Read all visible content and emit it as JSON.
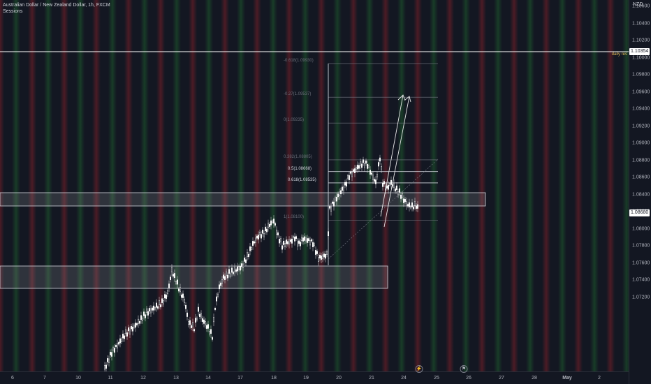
{
  "header": {
    "symbol_title": "Australian Dollar / New Zealand Dollar, 1h, FXCM",
    "indicator": "Sessions"
  },
  "price_axis": {
    "currency": "NZD",
    "ticks": [
      "1.10600",
      "1.10400",
      "1.10200",
      "1.10000",
      "1.09800",
      "1.09600",
      "1.09400",
      "1.09200",
      "1.09000",
      "1.08800",
      "1.08600",
      "1.08400",
      "1.08200",
      "1.08000",
      "1.07800",
      "1.07600",
      "1.07400",
      "1.07200"
    ],
    "daily_res_price": "1.10354",
    "current_price": "1.08680"
  },
  "time_axis": {
    "labels": [
      "6",
      "7",
      "10",
      "11",
      "12",
      "13",
      "14",
      "17",
      "18",
      "19",
      "20",
      "21",
      "24",
      "25",
      "26",
      "27",
      "28",
      "May",
      "2"
    ]
  },
  "drawings": {
    "daily_res_label": "daily res",
    "fib_levels": [
      {
        "label": "-0.618(1.09930)",
        "price": 1.0993
      },
      {
        "label": "-0.27(1.09537)",
        "price": 1.09537
      },
      {
        "label": "0(1.09235)",
        "price": 1.09235
      },
      {
        "label": "0.382(1.08805)",
        "price": 1.08805
      },
      {
        "label": "0.5(1.08668)",
        "price": 1.08668
      },
      {
        "label": "0.618(1.08535)",
        "price": 1.08535
      },
      {
        "label": "1(1.08100)",
        "price": 1.081
      }
    ],
    "zones": [
      {
        "name": "upper-supply-zone",
        "top": 1.089,
        "bottom": 1.0873
      },
      {
        "name": "lower-demand-zone",
        "top": 1.0813,
        "bottom": 1.0798
      }
    ]
  },
  "colors": {
    "background": "#131722",
    "candle": "#ffffff",
    "daily_res_line": "#ffffff",
    "daily_res_label": "#e0b85a",
    "current_price_tag": "#ffffff",
    "fib_line": "#787b86",
    "session_red": "#7a1f28",
    "session_green": "#1c5a2c"
  },
  "icons": {
    "alert_icon": "lightning-icon",
    "event_icon": "flag-icon"
  }
}
